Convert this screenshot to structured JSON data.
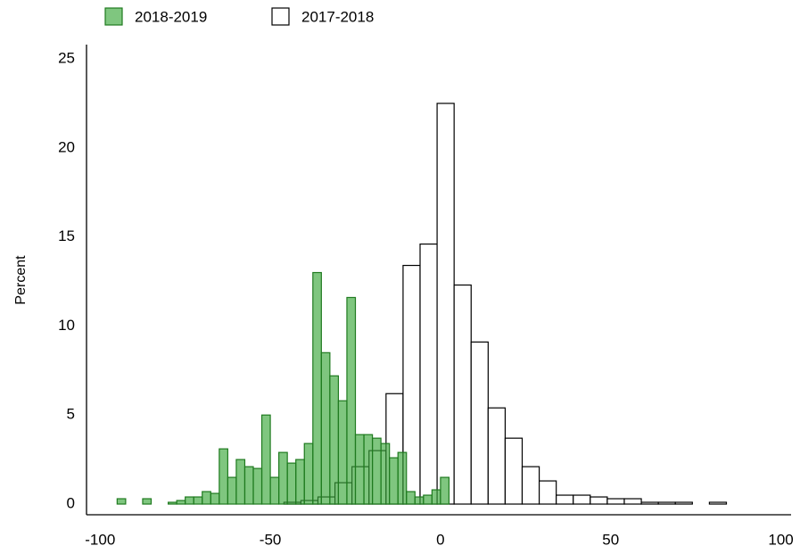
{
  "chart_data": {
    "type": "histogram",
    "y_label": "Percent",
    "legend": "top-left",
    "xlim": [
      -104,
      103
    ],
    "xticks": [
      -100,
      -50,
      0,
      50,
      100
    ],
    "ylim": [
      -0.6,
      25.8
    ],
    "yticks": [
      0,
      5,
      10,
      15,
      20,
      25
    ],
    "grid": false,
    "series": [
      {
        "name": "2018-2019",
        "color": "#3aa83a",
        "edgecolor": "#1f7a1f",
        "bins": [
          -95,
          -92.5,
          -90,
          -87.5,
          -85,
          -82.5,
          -80,
          -77.5,
          -75,
          -72.5,
          -70,
          -67.5,
          -65,
          -62.5,
          -60,
          -57.5,
          -55,
          -52.5,
          -50,
          -47.5,
          -45,
          -42.5,
          -40,
          -37.5,
          -35,
          -32.5,
          -30,
          -27.5,
          -25,
          -22.5,
          -20,
          -17.5,
          -15,
          -12.5,
          -10,
          -7.5,
          -5,
          -2.5,
          0,
          2.5,
          5
        ],
        "values": [
          0.3,
          0,
          0,
          0.3,
          0,
          0,
          0.1,
          0.2,
          0.4,
          0.4,
          0.7,
          0.6,
          3.1,
          1.5,
          2.5,
          2.1,
          2.0,
          5.0,
          1.5,
          2.9,
          2.3,
          2.5,
          3.4,
          13.0,
          8.5,
          7.2,
          5.8,
          11.6,
          3.9,
          3.9,
          3.7,
          3.4,
          2.6,
          2.9,
          0.7,
          0.4,
          0.5,
          0.8,
          1.5,
          0
        ]
      },
      {
        "name": "2017-2018",
        "color": "#ffffff",
        "edgecolor": "#000000",
        "bins": [
          -46,
          -41,
          -36,
          -31,
          -26,
          -21,
          -16,
          -11,
          -6,
          -1,
          4,
          9,
          14,
          19,
          24,
          29,
          34,
          39,
          44,
          49,
          54,
          59,
          64,
          69,
          74,
          79,
          84
        ],
        "values": [
          0.1,
          0.2,
          0.4,
          1.2,
          2.1,
          3.0,
          6.2,
          13.4,
          14.6,
          22.5,
          12.3,
          9.1,
          5.4,
          3.7,
          2.1,
          1.3,
          0.5,
          0.5,
          0.4,
          0.3,
          0.3,
          0.1,
          0.1,
          0.1,
          0,
          0.1
        ]
      }
    ]
  }
}
